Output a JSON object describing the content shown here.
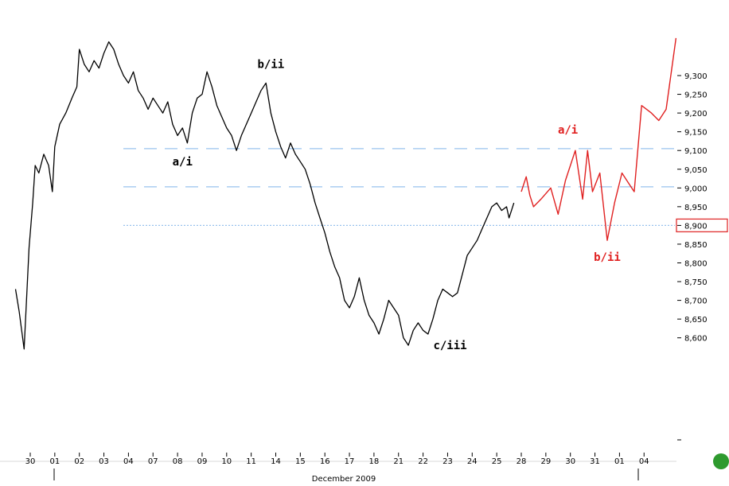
{
  "chart_data": {
    "type": "line",
    "xlabel": "December 2009",
    "x_tick_labels": [
      "30",
      "01",
      "02",
      "03",
      "04",
      "07",
      "08",
      "09",
      "10",
      "11",
      "14",
      "15",
      "16",
      "17",
      "18",
      "21",
      "22",
      "23",
      "24",
      "25",
      "28",
      "29",
      "30",
      "31",
      "01",
      "04"
    ],
    "y_tick_labels": [
      "9,300",
      "9,250",
      "9,200",
      "9,150",
      "9,100",
      "9,050",
      "9,000",
      "8,950",
      "8,900",
      "8,850",
      "8,800",
      "8,750",
      "8,700",
      "8,650",
      "8,600"
    ],
    "y_ticks": [
      9300,
      9250,
      9200,
      9150,
      9100,
      9050,
      9000,
      8950,
      8900,
      8850,
      8800,
      8750,
      8700,
      8650,
      8600
    ],
    "ylim": [
      8560,
      9380
    ],
    "highlighted_level": {
      "value": 8900,
      "label": "8,900",
      "color": "#e03030"
    },
    "grid": false,
    "reference_lines": [
      {
        "value": 9105,
        "style": "dashed",
        "color": "#99c3ee"
      },
      {
        "value": 9003,
        "style": "dashed",
        "color": "#99c3ee"
      },
      {
        "value": 8900,
        "style": "dotted",
        "color": "#99c3ee"
      }
    ],
    "series": [
      {
        "color": "#000000",
        "points": [
          [
            -0.6,
            8730
          ],
          [
            -0.45,
            8670
          ],
          [
            -0.25,
            8570
          ],
          [
            -0.05,
            8840
          ],
          [
            0.1,
            8960
          ],
          [
            0.2,
            9060
          ],
          [
            0.35,
            9040
          ],
          [
            0.55,
            9090
          ],
          [
            0.75,
            9060
          ],
          [
            0.9,
            8990
          ],
          [
            1.0,
            9110
          ],
          [
            1.2,
            9170
          ],
          [
            1.45,
            9200
          ],
          [
            1.7,
            9240
          ],
          [
            1.9,
            9270
          ],
          [
            2.0,
            9370
          ],
          [
            2.2,
            9330
          ],
          [
            2.4,
            9310
          ],
          [
            2.6,
            9340
          ],
          [
            2.8,
            9320
          ],
          [
            3.0,
            9360
          ],
          [
            3.2,
            9390
          ],
          [
            3.4,
            9370
          ],
          [
            3.6,
            9330
          ],
          [
            3.8,
            9300
          ],
          [
            4.0,
            9280
          ],
          [
            4.2,
            9310
          ],
          [
            4.4,
            9260
          ],
          [
            4.6,
            9240
          ],
          [
            4.8,
            9210
          ],
          [
            5.0,
            9240
          ],
          [
            5.2,
            9220
          ],
          [
            5.4,
            9200
          ],
          [
            5.6,
            9230
          ],
          [
            5.8,
            9170
          ],
          [
            6.0,
            9140
          ],
          [
            6.2,
            9160
          ],
          [
            6.4,
            9120
          ],
          [
            6.6,
            9200
          ],
          [
            6.8,
            9240
          ],
          [
            7.0,
            9250
          ],
          [
            7.2,
            9310
          ],
          [
            7.4,
            9270
          ],
          [
            7.6,
            9220
          ],
          [
            7.8,
            9190
          ],
          [
            8.0,
            9160
          ],
          [
            8.2,
            9140
          ],
          [
            8.4,
            9100
          ],
          [
            8.6,
            9140
          ],
          [
            8.8,
            9170
          ],
          [
            9.0,
            9200
          ],
          [
            9.2,
            9230
          ],
          [
            9.4,
            9260
          ],
          [
            9.6,
            9280
          ],
          [
            9.8,
            9200
          ],
          [
            10.0,
            9150
          ],
          [
            10.2,
            9110
          ],
          [
            10.4,
            9080
          ],
          [
            10.6,
            9120
          ],
          [
            10.8,
            9090
          ],
          [
            11.0,
            9070
          ],
          [
            11.2,
            9050
          ],
          [
            11.4,
            9010
          ],
          [
            11.6,
            8960
          ],
          [
            11.8,
            8920
          ],
          [
            12.0,
            8880
          ],
          [
            12.2,
            8830
          ],
          [
            12.4,
            8790
          ],
          [
            12.6,
            8760
          ],
          [
            12.8,
            8700
          ],
          [
            13.0,
            8680
          ],
          [
            13.2,
            8710
          ],
          [
            13.4,
            8760
          ],
          [
            13.6,
            8700
          ],
          [
            13.8,
            8660
          ],
          [
            14.0,
            8640
          ],
          [
            14.2,
            8610
          ],
          [
            14.4,
            8650
          ],
          [
            14.6,
            8700
          ],
          [
            14.8,
            8680
          ],
          [
            15.0,
            8660
          ],
          [
            15.2,
            8600
          ],
          [
            15.4,
            8580
          ],
          [
            15.6,
            8620
          ],
          [
            15.8,
            8640
          ],
          [
            16.0,
            8620
          ],
          [
            16.2,
            8610
          ],
          [
            16.4,
            8650
          ],
          [
            16.6,
            8700
          ],
          [
            16.8,
            8730
          ],
          [
            17.0,
            8720
          ],
          [
            17.2,
            8710
          ],
          [
            17.4,
            8720
          ],
          [
            17.6,
            8770
          ],
          [
            17.8,
            8820
          ],
          [
            18.0,
            8840
          ],
          [
            18.2,
            8860
          ],
          [
            18.4,
            8890
          ],
          [
            18.6,
            8920
          ],
          [
            18.8,
            8950
          ],
          [
            19.0,
            8960
          ],
          [
            19.2,
            8940
          ],
          [
            19.4,
            8950
          ],
          [
            19.5,
            8920
          ],
          [
            19.6,
            8940
          ],
          [
            19.7,
            8960
          ]
        ]
      },
      {
        "color": "#e02020",
        "points": [
          [
            20.0,
            8990
          ],
          [
            20.2,
            9030
          ],
          [
            20.35,
            8980
          ],
          [
            20.5,
            8950
          ],
          [
            20.8,
            8970
          ],
          [
            21.2,
            9000
          ],
          [
            21.5,
            8930
          ],
          [
            21.8,
            9020
          ],
          [
            22.2,
            9100
          ],
          [
            22.5,
            8970
          ],
          [
            22.7,
            9100
          ],
          [
            22.9,
            8990
          ],
          [
            23.2,
            9040
          ],
          [
            23.5,
            8860
          ],
          [
            23.8,
            8960
          ],
          [
            24.1,
            9040
          ],
          [
            24.4,
            9010
          ],
          [
            24.6,
            8990
          ],
          [
            24.9,
            9220
          ],
          [
            25.3,
            9200
          ],
          [
            25.6,
            9180
          ],
          [
            25.9,
            9210
          ],
          [
            26.3,
            9400
          ]
        ]
      }
    ],
    "annotations": [
      {
        "text": "a/i",
        "x": 6.2,
        "y": 9060,
        "color": "#000000"
      },
      {
        "text": "b/ii",
        "x": 9.8,
        "y": 9320,
        "color": "#000000"
      },
      {
        "text": "c/iii",
        "x": 17.1,
        "y": 8570,
        "color": "#000000"
      },
      {
        "text": "a/i",
        "x": 21.9,
        "y": 9145,
        "color": "#e02020"
      },
      {
        "text": "b/ii",
        "x": 23.5,
        "y": 8805,
        "color": "#e02020"
      }
    ],
    "status_dot_color": "#2e9a2e"
  }
}
